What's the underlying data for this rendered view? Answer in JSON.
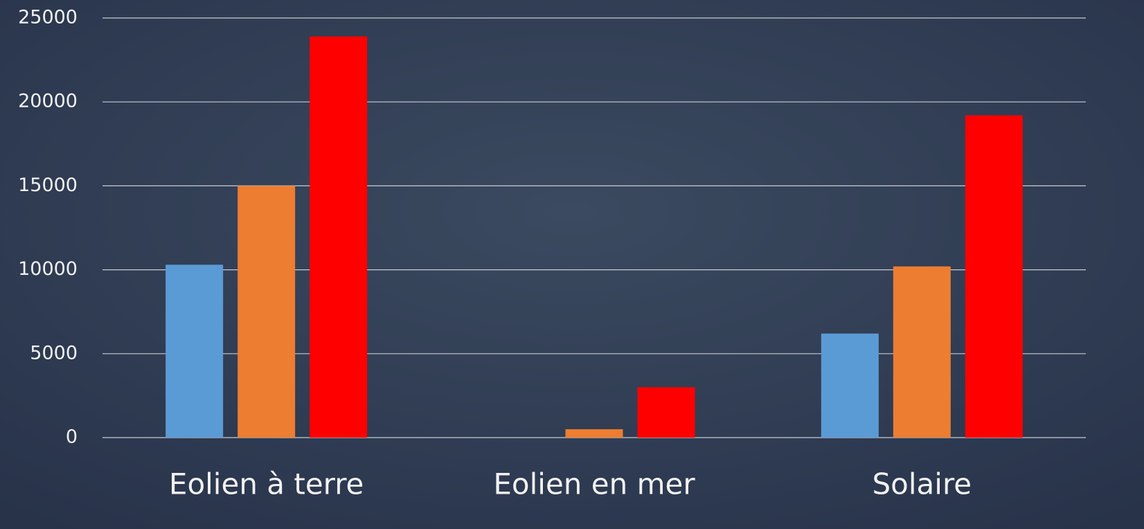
{
  "chart_data": {
    "type": "bar",
    "categories": [
      "Eolien à terre",
      "Eolien en mer",
      "Solaire"
    ],
    "series": [
      {
        "color": "#5b9bd5",
        "values": [
          10300,
          0,
          6200
        ]
      },
      {
        "color": "#ed7d31",
        "values": [
          15000,
          500,
          10200
        ]
      },
      {
        "color": "#ff0000",
        "values": [
          23900,
          3000,
          19200
        ]
      }
    ],
    "ylim": [
      0,
      25000
    ],
    "yticks": [
      0,
      5000,
      10000,
      15000,
      20000,
      25000
    ],
    "grid": true
  }
}
